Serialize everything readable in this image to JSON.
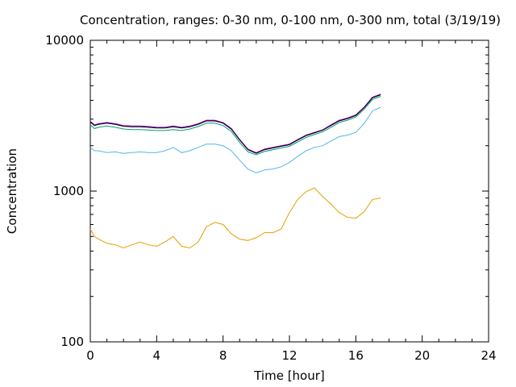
{
  "chart_data": {
    "type": "line",
    "title": "Concentration, ranges: 0-30 nm, 0-100 nm, 0-300 nm, total (3/19/19)",
    "xlabel": "Time [hour]",
    "ylabel": "Concentration",
    "xlim": [
      0,
      24
    ],
    "ylim": [
      100,
      10000
    ],
    "yscale": "log",
    "grid": false,
    "x_ticks": [
      "0",
      "4",
      "8",
      "12",
      "16",
      "20",
      "24"
    ],
    "y_ticks": [
      "100",
      "1000",
      "10000"
    ],
    "series": [
      {
        "color": "#9400d3",
        "x": [
          0,
          0.25,
          0.5,
          1,
          1.5,
          2,
          2.5,
          3,
          3.5,
          4,
          4.5,
          5,
          5.5,
          6,
          6.5,
          7,
          7.5,
          8,
          8.5,
          9,
          9.5,
          10,
          10.5,
          11,
          11.5,
          12,
          12.5,
          13,
          13.5,
          14,
          14.5,
          15,
          15.5,
          16,
          16.5,
          17,
          17.5
        ],
        "y": [
          2900,
          2750,
          2800,
          2850,
          2800,
          2720,
          2700,
          2700,
          2680,
          2650,
          2650,
          2700,
          2650,
          2700,
          2800,
          2950,
          2950,
          2850,
          2600,
          2200,
          1900,
          1800,
          1900,
          1950,
          2000,
          2050,
          2200,
          2350,
          2450,
          2550,
          2750,
          2950,
          3050,
          3200,
          3600,
          4200,
          4400
        ]
      },
      {
        "color": "#000000",
        "x": [
          0,
          0.25,
          0.5,
          1,
          1.5,
          2,
          2.5,
          3,
          3.5,
          4,
          4.5,
          5,
          5.5,
          6,
          6.5,
          7,
          7.5,
          8,
          8.5,
          9,
          9.5,
          10,
          10.5,
          11,
          11.5,
          12,
          12.5,
          13,
          13.5,
          14,
          14.5,
          15,
          15.5,
          16,
          16.5,
          17,
          17.5
        ],
        "y": [
          2870,
          2720,
          2770,
          2820,
          2770,
          2690,
          2670,
          2670,
          2650,
          2620,
          2620,
          2670,
          2620,
          2670,
          2770,
          2920,
          2920,
          2820,
          2570,
          2180,
          1880,
          1780,
          1880,
          1930,
          1980,
          2030,
          2180,
          2330,
          2430,
          2530,
          2720,
          2920,
          3020,
          3170,
          3570,
          4150,
          4350
        ]
      },
      {
        "color": "#009e73",
        "x": [
          0,
          0.25,
          0.5,
          1,
          1.5,
          2,
          2.5,
          3,
          3.5,
          4,
          4.5,
          5,
          5.5,
          6,
          6.5,
          7,
          7.5,
          8,
          8.5,
          9,
          9.5,
          10,
          10.5,
          11,
          11.5,
          12,
          12.5,
          13,
          13.5,
          14,
          14.5,
          15,
          15.5,
          16,
          16.5,
          17,
          17.5
        ],
        "y": [
          2750,
          2600,
          2650,
          2700,
          2650,
          2580,
          2560,
          2560,
          2540,
          2520,
          2520,
          2560,
          2520,
          2580,
          2680,
          2820,
          2820,
          2720,
          2480,
          2100,
          1820,
          1740,
          1830,
          1880,
          1930,
          1980,
          2120,
          2270,
          2370,
          2470,
          2650,
          2850,
          2950,
          3100,
          3480,
          4050,
          4250
        ]
      },
      {
        "color": "#56b4e9",
        "x": [
          0,
          0.25,
          0.5,
          1,
          1.5,
          2,
          2.5,
          3,
          3.5,
          4,
          4.5,
          5,
          5.5,
          6,
          6.5,
          7,
          7.5,
          8,
          8.5,
          9,
          9.5,
          10,
          10.5,
          11,
          11.5,
          12,
          12.5,
          13,
          13.5,
          14,
          14.5,
          15,
          15.5,
          16,
          16.5,
          17,
          17.5
        ],
        "y": [
          1950,
          1850,
          1850,
          1800,
          1820,
          1780,
          1800,
          1820,
          1800,
          1800,
          1850,
          1950,
          1800,
          1850,
          1950,
          2050,
          2050,
          2000,
          1850,
          1600,
          1400,
          1320,
          1380,
          1400,
          1450,
          1550,
          1700,
          1850,
          1950,
          2000,
          2150,
          2300,
          2350,
          2450,
          2800,
          3400,
          3600
        ]
      },
      {
        "color": "#e69f00",
        "x": [
          0,
          0.25,
          0.5,
          1,
          1.5,
          2,
          2.5,
          3,
          3.5,
          4,
          4.5,
          5,
          5.5,
          6,
          6.5,
          7,
          7.5,
          8,
          8.5,
          9,
          9.5,
          10,
          10.5,
          11,
          11.5,
          12,
          12.5,
          13,
          13.5,
          14,
          14.5,
          15,
          15.5,
          16,
          16.5,
          17,
          17.5
        ],
        "y": [
          560,
          500,
          480,
          450,
          440,
          420,
          440,
          460,
          440,
          430,
          460,
          500,
          430,
          420,
          460,
          580,
          620,
          600,
          520,
          480,
          470,
          490,
          530,
          530,
          560,
          720,
          880,
          990,
          1050,
          920,
          820,
          720,
          670,
          660,
          730,
          880,
          900
        ]
      }
    ]
  }
}
